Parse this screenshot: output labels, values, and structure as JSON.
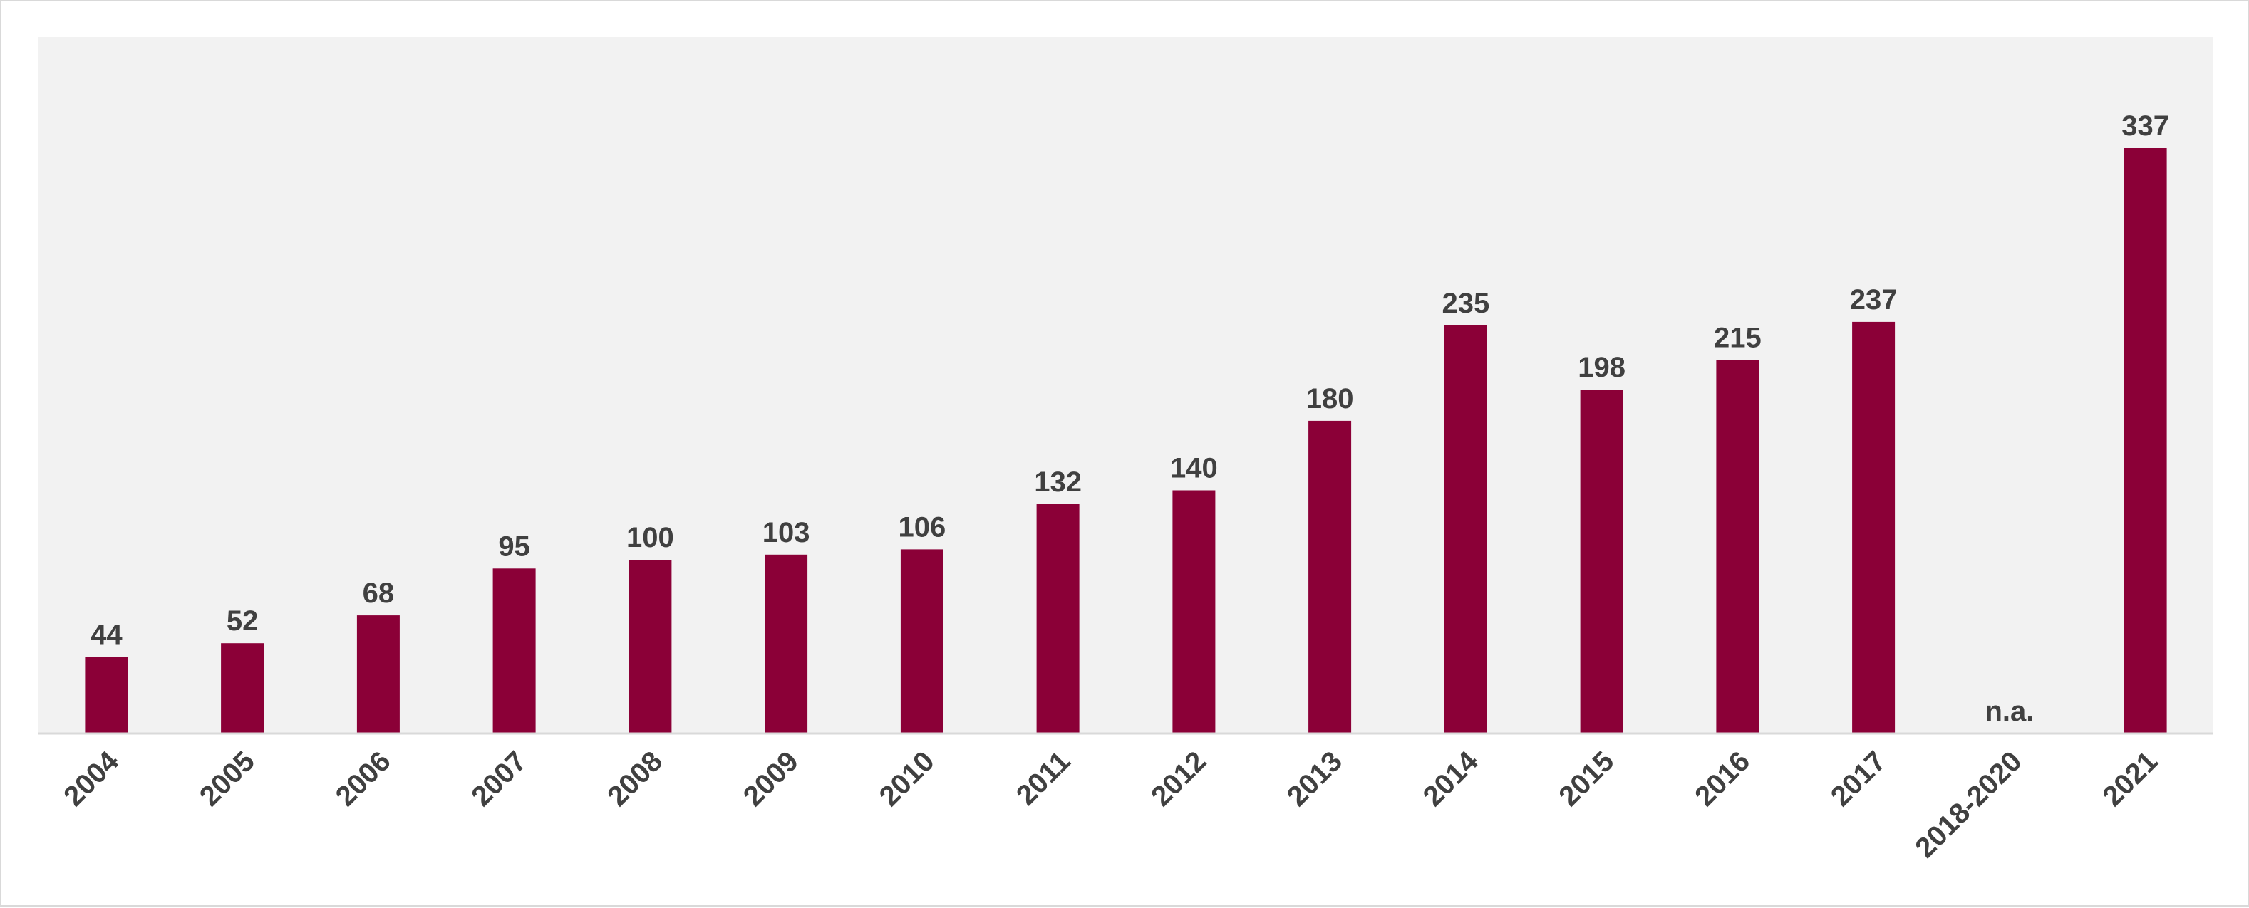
{
  "chart_data": {
    "type": "bar",
    "categories": [
      "2004",
      "2005",
      "2006",
      "2007",
      "2008",
      "2009",
      "2010",
      "2011",
      "2012",
      "2013",
      "2014",
      "2015",
      "2016",
      "2017",
      "2018-2020",
      "2021"
    ],
    "values": [
      44,
      52,
      68,
      95,
      100,
      103,
      106,
      132,
      140,
      180,
      235,
      198,
      215,
      237,
      null,
      337
    ],
    "data_labels": [
      "44",
      "52",
      "68",
      "95",
      "100",
      "103",
      "106",
      "132",
      "140",
      "180",
      "235",
      "198",
      "215",
      "237",
      "n.a.",
      "337"
    ],
    "title": "",
    "xlabel": "",
    "ylabel": "",
    "ylim": [
      0,
      400
    ],
    "grid": false,
    "legend": "none",
    "colors": {
      "bar": "#8b0037",
      "plot_background": "#f2f2f2",
      "axis": "#d9d9d9",
      "text": "#404040"
    }
  }
}
